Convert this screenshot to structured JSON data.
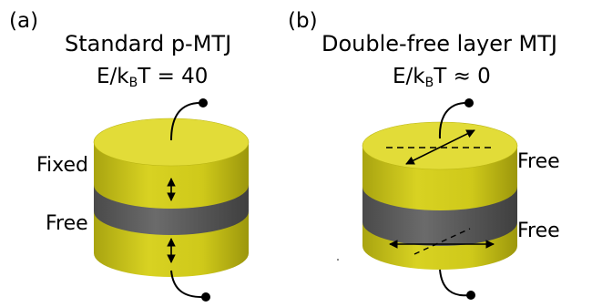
{
  "panel_a": {
    "letter": "(a)",
    "title": "Standard p-MTJ",
    "energy": {
      "lhs": "E/k",
      "sub": "B",
      "rhs": "T = 40"
    },
    "top_layer_label": "Fixed",
    "bottom_layer_label": "Free"
  },
  "panel_b": {
    "letter": "(b)",
    "title": "Double-free layer MTJ",
    "energy": {
      "lhs": "E/k",
      "sub": "B",
      "rhs": "T ≈ 0"
    },
    "top_layer_label": "Free",
    "bottom_layer_label": "Free"
  },
  "colors": {
    "ferromagnet": "#d2cc1a",
    "ferromagnet_top": "#e6e040",
    "barrier": "#5f5f5f",
    "wire": "#000000"
  }
}
